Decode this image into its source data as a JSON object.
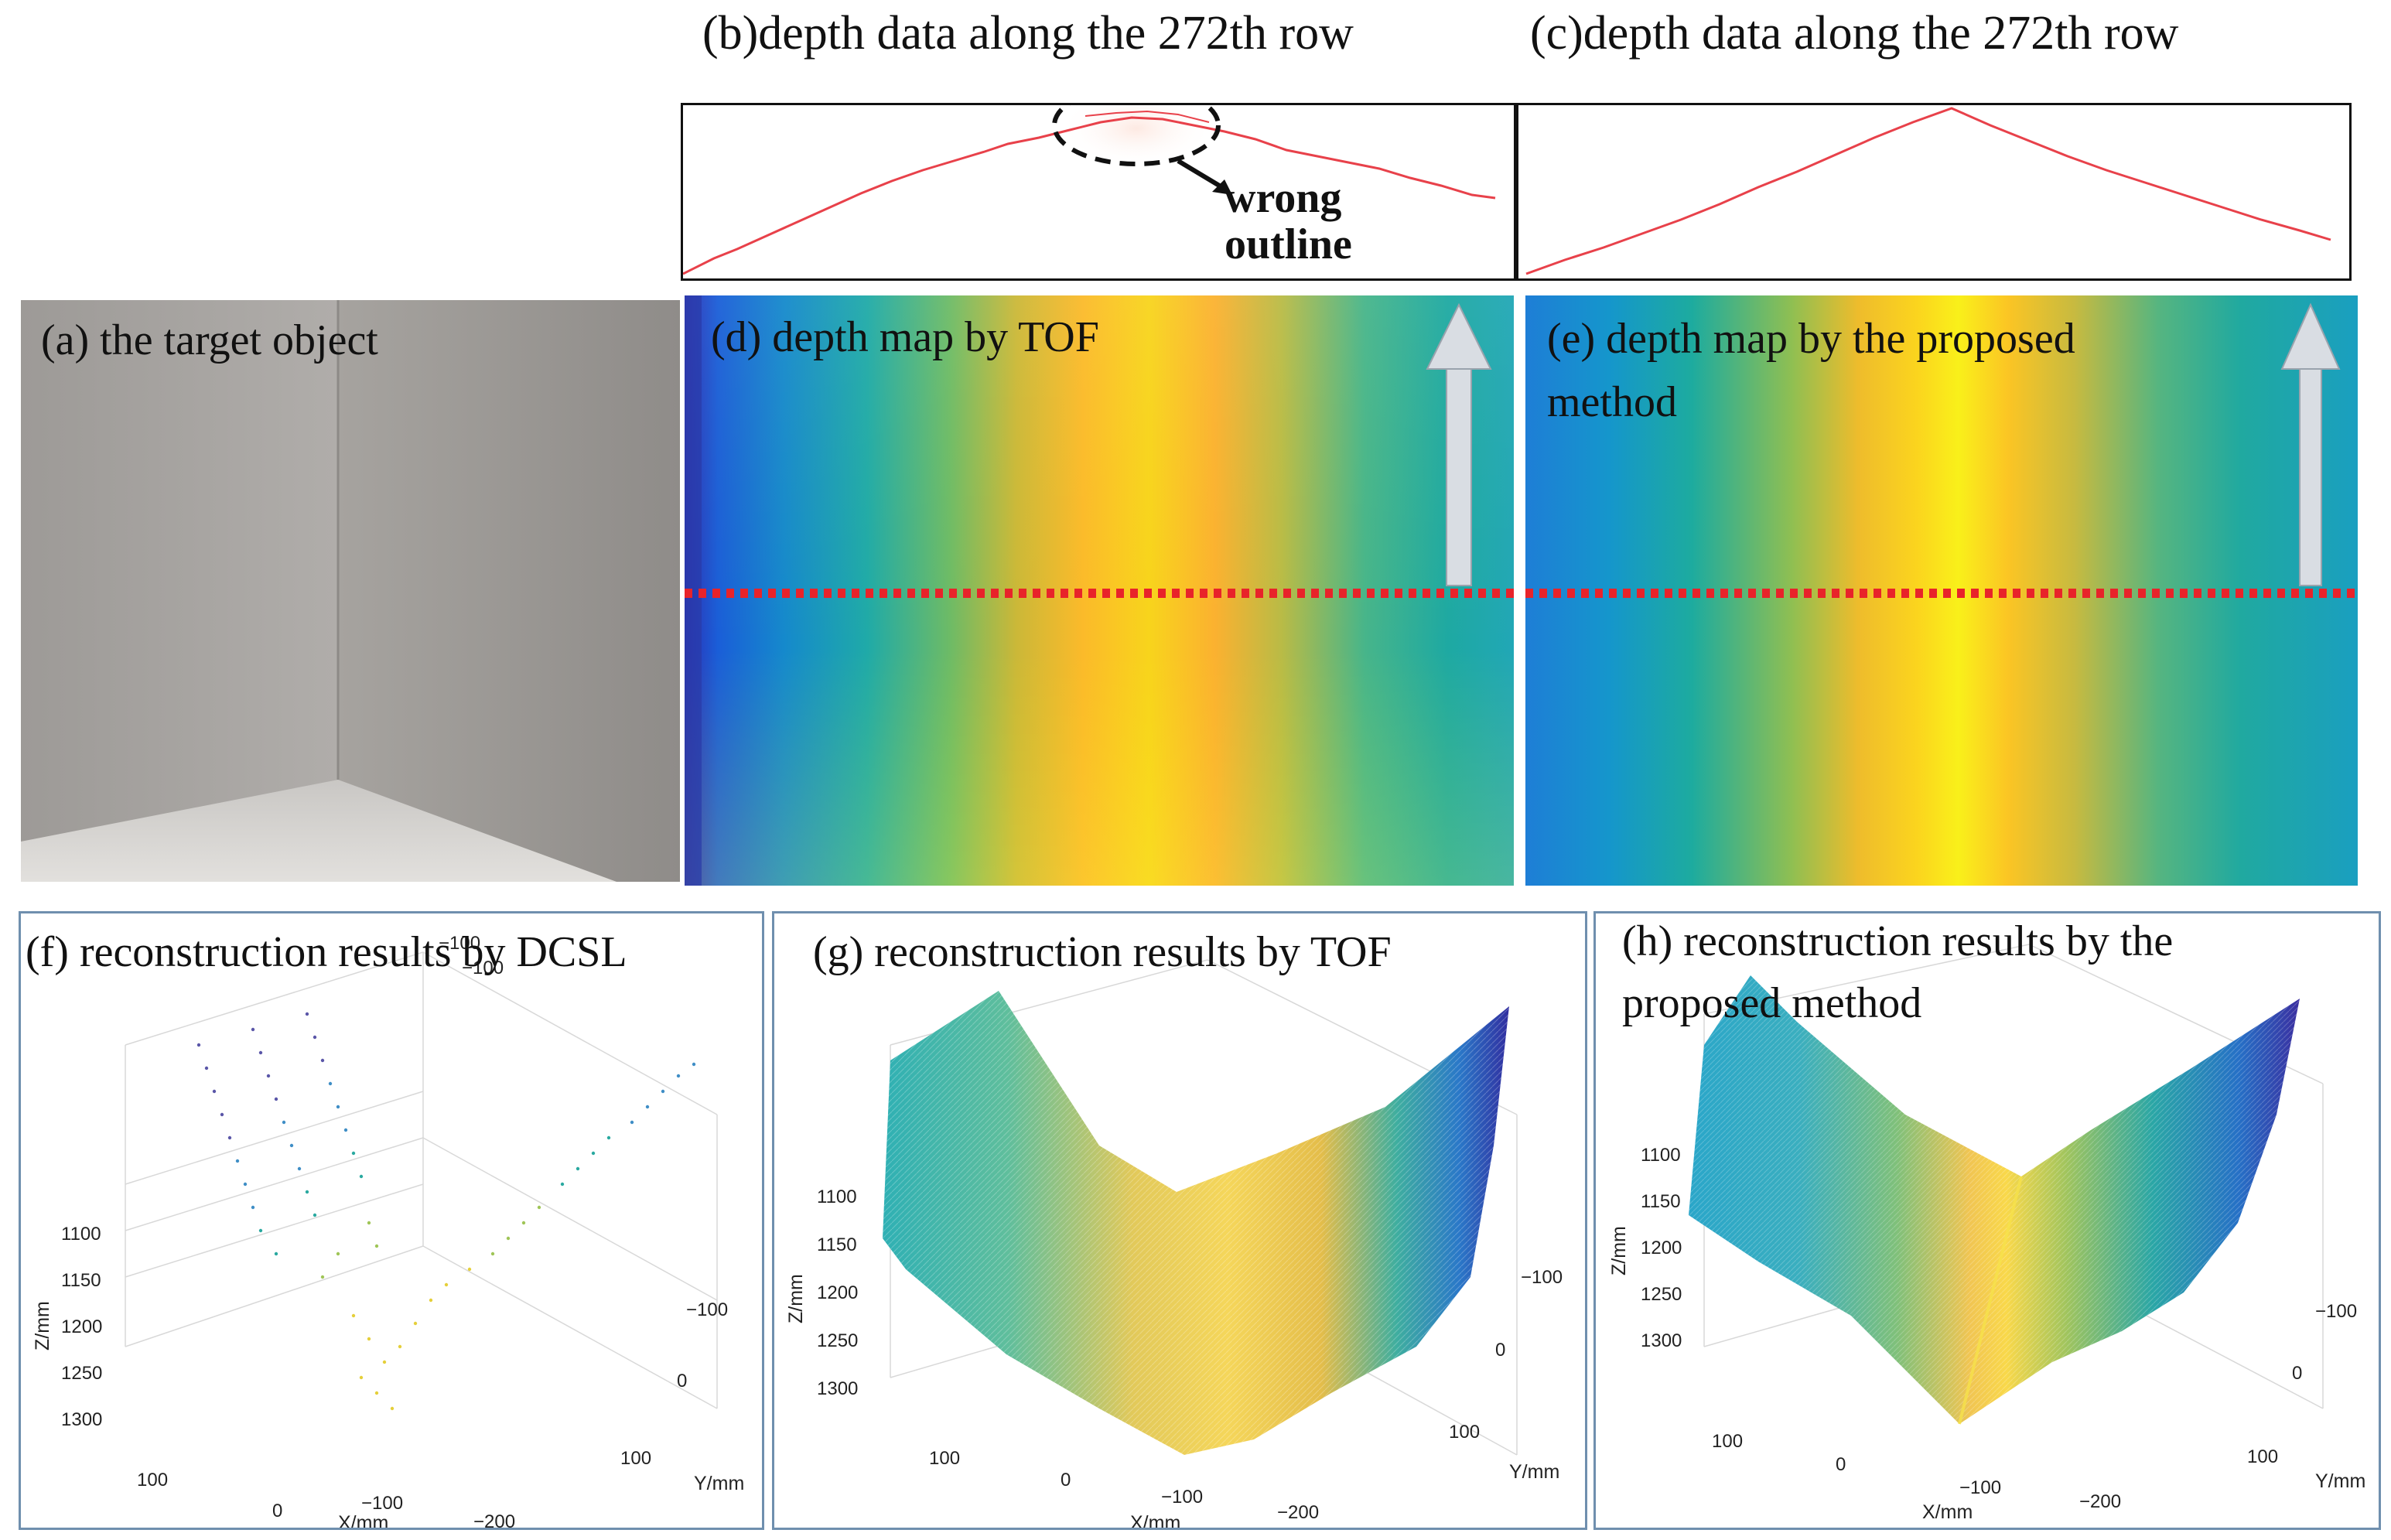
{
  "figure": {
    "captions": {
      "a": "(a) the target object",
      "b": "(b)depth data along the 272th row",
      "c": "(c)depth data along the 272th row",
      "d": "(d) depth map by TOF",
      "e_line1": "(e) depth map by the proposed",
      "e_line2": "method",
      "f": "(f) reconstruction results by DCSL",
      "g": "(g) reconstruction results by TOF",
      "h_line1": "(h) reconstruction results by the",
      "h_line2": "proposed method"
    },
    "annotation": {
      "line1": "wrong",
      "line2": "outline"
    },
    "stray_labels": {
      "f_top1": "−100",
      "f_top2": "−100"
    },
    "axes": {
      "z_label": "Z/mm",
      "x_label": "X/mm",
      "y_label": "Y/mm",
      "z_ticks_fg": [
        "1100",
        "1150",
        "1200",
        "1250",
        "1300"
      ],
      "z_ticks_h": [
        "1100",
        "1150",
        "1200",
        "1250",
        "1300"
      ],
      "x_ticks": [
        "100",
        "0",
        "−100",
        "−200"
      ],
      "y_ticks": [
        "−100",
        "0",
        "100"
      ]
    },
    "colors": {
      "profile_line": "#e8414a",
      "dashed_row": "#e8232a",
      "panel_frame": "#6f8fae",
      "photo_bg": "#a8a5a2"
    }
  }
}
